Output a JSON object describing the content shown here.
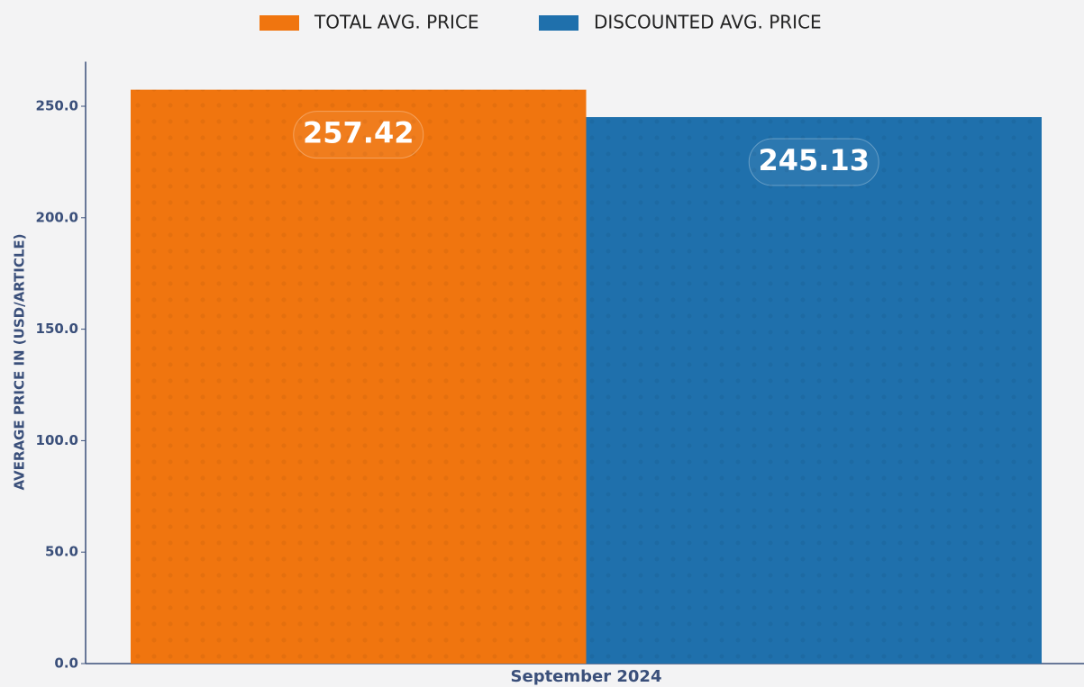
{
  "chart_data": {
    "type": "bar",
    "categories": [
      "September 2024"
    ],
    "series": [
      {
        "name": "TOTAL AVG. PRICE",
        "color": "#f0750f",
        "values": [
          257.42
        ]
      },
      {
        "name": "DISCOUNTED AVG. PRICE",
        "color": "#1f70ac",
        "values": [
          245.13
        ]
      }
    ],
    "y_label": "AVERAGE PRICE IN (USD/ARTICLE)",
    "ylim": [
      0,
      270
    ],
    "yticks": [
      {
        "value": 0,
        "label": "0.0"
      },
      {
        "value": 50,
        "label": "50.0"
      },
      {
        "value": 100,
        "label": "100.0"
      },
      {
        "value": 150,
        "label": "150.0"
      },
      {
        "value": 200,
        "label": "200.0"
      },
      {
        "value": 250,
        "label": "250.0"
      }
    ],
    "legend": "top"
  }
}
